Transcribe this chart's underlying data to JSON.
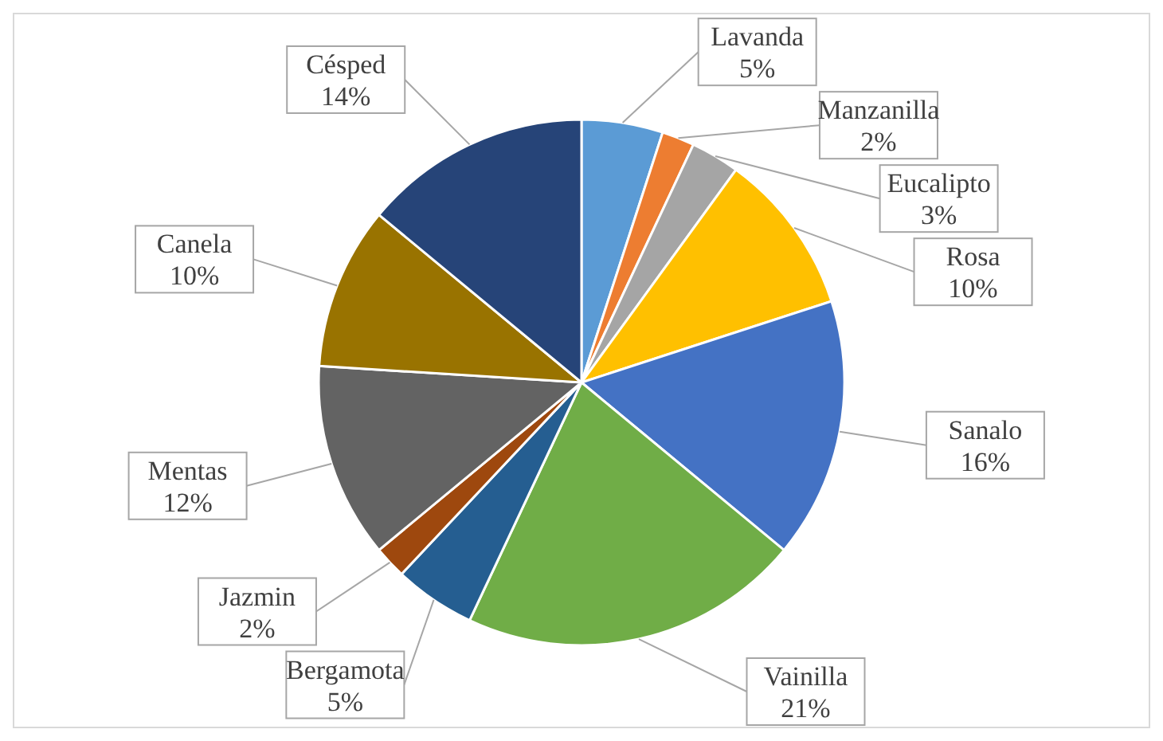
{
  "chart_data": {
    "type": "pie",
    "categories": [
      "Lavanda",
      "Manzanilla",
      "Eucalipto",
      "Rosa",
      "Sanalo",
      "Vainilla",
      "Bergamota",
      "Jazmin",
      "Mentas",
      "Canela",
      "Césped"
    ],
    "values": [
      5,
      2,
      3,
      10,
      16,
      21,
      5,
      2,
      12,
      10,
      14
    ],
    "colors": [
      "#5b9bd5",
      "#ed7d31",
      "#a5a5a5",
      "#ffc000",
      "#4472c4",
      "#70ad47",
      "#255e91",
      "#9e480e",
      "#636363",
      "#997300",
      "#264478"
    ],
    "value_labels": [
      "5%",
      "2%",
      "3%",
      "10%",
      "16%",
      "21%",
      "5%",
      "2%",
      "12%",
      "10%",
      "14%"
    ]
  }
}
